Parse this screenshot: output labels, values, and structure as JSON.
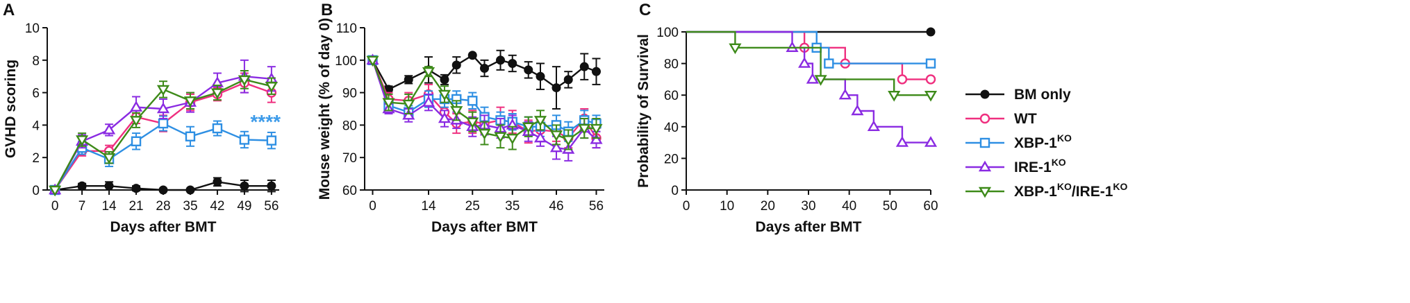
{
  "colors": {
    "bm_only": "#111111",
    "wt": "#ef2f7f",
    "xbp": "#2e8fe3",
    "ire": "#8a2be2",
    "double": "#3d8a19",
    "stars": "#3d9be9"
  },
  "legend": {
    "items": [
      {
        "key": "bm_only",
        "base": "BM only",
        "sup": ""
      },
      {
        "key": "wt",
        "base": "WT",
        "sup": ""
      },
      {
        "key": "xbp",
        "base": "XBP-1",
        "sup": "KO"
      },
      {
        "key": "ire",
        "base": "IRE-1",
        "sup": "KO"
      },
      {
        "key": "double",
        "base": "XBP-1",
        "sup": "KO",
        "base2": "/IRE-1",
        "sup2": "KO"
      }
    ]
  },
  "chart_data": [
    {
      "panel": "A",
      "type": "line",
      "xlabel": "Days after BMT",
      "ylabel": "GVHD scoring",
      "xlim": [
        -2,
        58
      ],
      "ylim": [
        0,
        10
      ],
      "xticks": [
        0,
        7,
        14,
        21,
        28,
        35,
        42,
        49,
        56
      ],
      "yticks": [
        0,
        2,
        4,
        6,
        8,
        10
      ],
      "annotation": "****",
      "series": [
        {
          "key": "bm_only",
          "name": "BM only",
          "marker": "circle-filled",
          "x": [
            0,
            7,
            14,
            21,
            28,
            35,
            42,
            49,
            56
          ],
          "y": [
            0,
            0.25,
            0.25,
            0.1,
            0,
            0,
            0.5,
            0.25,
            0.25
          ],
          "err": [
            0,
            0.15,
            0.25,
            0.15,
            0,
            0,
            0.25,
            0.35,
            0.35
          ]
        },
        {
          "key": "wt",
          "name": "WT",
          "marker": "circle-open",
          "x": [
            0,
            7,
            14,
            21,
            28,
            35,
            42,
            49,
            56
          ],
          "y": [
            0,
            2.4,
            2.4,
            4.5,
            4.1,
            5.4,
            5.9,
            6.6,
            6.0
          ],
          "err": [
            0,
            0.3,
            0.35,
            0.4,
            0.5,
            0.5,
            0.4,
            0.6,
            0.6
          ]
        },
        {
          "key": "xbp",
          "name": "XBP-1KO",
          "marker": "square-open",
          "x": [
            0,
            7,
            14,
            21,
            28,
            35,
            42,
            49,
            56
          ],
          "y": [
            0,
            2.6,
            1.9,
            3.0,
            4.1,
            3.3,
            3.8,
            3.1,
            3.05
          ],
          "err": [
            0,
            0.4,
            0.45,
            0.5,
            0.45,
            0.6,
            0.45,
            0.5,
            0.5
          ]
        },
        {
          "key": "ire",
          "name": "IRE-1KO",
          "marker": "triangle-up-open",
          "x": [
            0,
            7,
            14,
            21,
            28,
            35,
            42,
            49,
            56
          ],
          "y": [
            0,
            3.0,
            3.7,
            5.1,
            5.0,
            5.4,
            6.6,
            7.0,
            6.85
          ],
          "err": [
            0,
            0.4,
            0.35,
            0.65,
            0.6,
            0.6,
            0.6,
            1.0,
            0.75
          ]
        },
        {
          "key": "double",
          "name": "XBP-1KO/IRE-1KO",
          "marker": "triangle-down-open",
          "x": [
            0,
            7,
            14,
            21,
            28,
            35,
            42,
            49,
            56
          ],
          "y": [
            0,
            3.1,
            2.0,
            4.3,
            6.2,
            5.5,
            6.0,
            6.8,
            6.4
          ],
          "err": [
            0,
            0.4,
            0.35,
            0.45,
            0.5,
            0.5,
            0.45,
            0.55,
            0.5
          ]
        }
      ]
    },
    {
      "panel": "B",
      "type": "line",
      "xlabel": "Days after BMT",
      "ylabel": "Mouse weight (% of day 0)",
      "xlim": [
        -2,
        58
      ],
      "ylim": [
        60,
        110
      ],
      "xticks": [
        0,
        14,
        25,
        35,
        46,
        56
      ],
      "yticks": [
        60,
        70,
        80,
        90,
        100,
        110
      ],
      "series": [
        {
          "key": "bm_only",
          "name": "BM only",
          "marker": "circle-filled",
          "x": [
            0,
            4,
            9,
            14,
            18,
            21,
            25,
            28,
            32,
            35,
            39,
            42,
            46,
            49,
            53,
            56
          ],
          "y": [
            100,
            91,
            94,
            97,
            94,
            98.5,
            101.5,
            97.5,
            100,
            99,
            97,
            95,
            91.5,
            94,
            98,
            96.5
          ],
          "err": [
            0,
            1,
            1.2,
            4,
            1.5,
            2.5,
            0,
            2.5,
            3,
            2.5,
            2.5,
            4,
            6.5,
            2.5,
            4,
            4
          ]
        },
        {
          "key": "wt",
          "name": "WT",
          "marker": "circle-open",
          "x": [
            0,
            4,
            9,
            14,
            18,
            21,
            25,
            28,
            32,
            35,
            39,
            42,
            46,
            49,
            53,
            56
          ],
          "y": [
            100,
            88,
            87.5,
            89.5,
            84,
            80.5,
            81,
            80.5,
            81.5,
            81,
            78,
            78.5,
            78,
            76,
            82,
            76
          ],
          "err": [
            0,
            2,
            2.5,
            3,
            3,
            3,
            3.5,
            3,
            4,
            3.5,
            3.5,
            3,
            3,
            3,
            3,
            3
          ]
        },
        {
          "key": "xbp",
          "name": "XBP-1KO",
          "marker": "square-open",
          "x": [
            0,
            4,
            9,
            14,
            18,
            21,
            25,
            28,
            32,
            35,
            39,
            42,
            46,
            49,
            53,
            56
          ],
          "y": [
            100,
            86,
            84,
            88,
            88,
            88,
            87.5,
            82.5,
            81.5,
            81,
            79.5,
            79.5,
            80,
            78,
            81.5,
            80.5
          ],
          "err": [
            0,
            2,
            2,
            2.5,
            2.5,
            2.5,
            2.5,
            3,
            2.5,
            2.5,
            3,
            3,
            3,
            3,
            3,
            2.5
          ]
        },
        {
          "key": "ire",
          "name": "IRE-1KO",
          "marker": "triangle-up-open",
          "x": [
            0,
            4,
            9,
            14,
            18,
            21,
            25,
            28,
            32,
            35,
            39,
            42,
            46,
            49,
            53,
            56
          ],
          "y": [
            100,
            85,
            83,
            87,
            82,
            81.5,
            79.5,
            80,
            79,
            80,
            78,
            76,
            73,
            72.5,
            79,
            75.5
          ],
          "err": [
            0,
            1.5,
            2,
            2.5,
            2.5,
            2.5,
            3,
            3,
            3,
            3,
            3,
            2.5,
            3.5,
            3.5,
            3,
            2.5
          ]
        },
        {
          "key": "double",
          "name": "XBP-1KO/IRE-1KO",
          "marker": "triangle-down-open",
          "x": [
            0,
            4,
            9,
            14,
            18,
            21,
            25,
            28,
            32,
            35,
            39,
            42,
            46,
            49,
            53,
            56
          ],
          "y": [
            100,
            87,
            86.5,
            96.5,
            89.5,
            84.5,
            81,
            77.5,
            76.5,
            76,
            79.5,
            81.5,
            77,
            75.5,
            79,
            79
          ],
          "err": [
            0,
            2.5,
            3,
            1.5,
            2.5,
            3,
            3,
            3.5,
            3.5,
            3.5,
            3,
            3,
            3,
            3,
            3,
            3
          ]
        }
      ]
    },
    {
      "panel": "C",
      "type": "line",
      "subtype": "step",
      "xlabel": "Days after BMT",
      "ylabel": "Probability of Survival",
      "xlim": [
        0,
        60
      ],
      "ylim": [
        0,
        100
      ],
      "xticks": [
        0,
        10,
        20,
        30,
        40,
        50,
        60
      ],
      "yticks": [
        0,
        20,
        40,
        60,
        80,
        100
      ],
      "series": [
        {
          "key": "bm_only",
          "name": "BM only",
          "marker": "circle-filled",
          "steps": [
            [
              0,
              100
            ],
            [
              60,
              100
            ]
          ],
          "marks": [
            [
              60,
              100
            ]
          ]
        },
        {
          "key": "wt",
          "name": "WT",
          "marker": "circle-open",
          "steps": [
            [
              0,
              100
            ],
            [
              29,
              90
            ],
            [
              39,
              80
            ],
            [
              53,
              70
            ],
            [
              60,
              70
            ]
          ],
          "marks": [
            [
              29,
              90
            ],
            [
              39,
              80
            ],
            [
              53,
              70
            ],
            [
              60,
              70
            ]
          ]
        },
        {
          "key": "xbp",
          "name": "XBP-1KO",
          "marker": "square-open",
          "steps": [
            [
              0,
              100
            ],
            [
              32,
              90
            ],
            [
              35,
              80
            ],
            [
              60,
              80
            ]
          ],
          "marks": [
            [
              32,
              90
            ],
            [
              35,
              80
            ],
            [
              60,
              80
            ]
          ]
        },
        {
          "key": "ire",
          "name": "IRE-1KO",
          "marker": "triangle-up-open",
          "steps": [
            [
              0,
              100
            ],
            [
              26,
              90
            ],
            [
              29,
              80
            ],
            [
              31,
              70
            ],
            [
              39,
              60
            ],
            [
              42,
              50
            ],
            [
              46,
              40
            ],
            [
              53,
              30
            ],
            [
              60,
              30
            ]
          ],
          "marks": [
            [
              26,
              90
            ],
            [
              29,
              80
            ],
            [
              31,
              70
            ],
            [
              39,
              60
            ],
            [
              42,
              50
            ],
            [
              46,
              40
            ],
            [
              53,
              30
            ],
            [
              60,
              30
            ]
          ]
        },
        {
          "key": "double",
          "name": "XBP-1KO/IRE-1KO",
          "marker": "triangle-down-open",
          "steps": [
            [
              0,
              100
            ],
            [
              12,
              90
            ],
            [
              33,
              70
            ],
            [
              51,
              60
            ],
            [
              60,
              60
            ]
          ],
          "marks": [
            [
              12,
              90
            ],
            [
              33,
              70
            ],
            [
              51,
              60
            ],
            [
              60,
              60
            ]
          ]
        }
      ]
    }
  ]
}
